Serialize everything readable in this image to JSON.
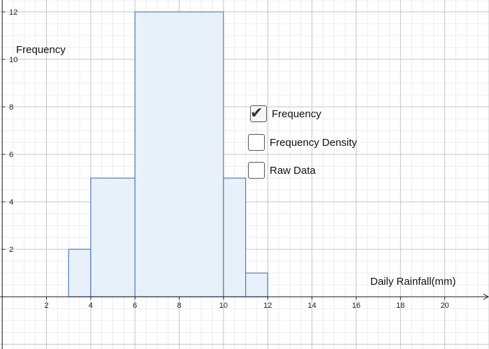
{
  "chart_data": {
    "type": "histogram",
    "xlabel": "Daily Rainfall(mm)",
    "ylabel": "Frequency",
    "xlim": [
      -0.1,
      22
    ],
    "ylim": [
      -2.2,
      12.5
    ],
    "xticks": [
      2,
      4,
      6,
      8,
      10,
      12,
      14,
      16,
      18,
      20
    ],
    "yticks": [
      2,
      4,
      6,
      8,
      10,
      12
    ],
    "bins": [
      {
        "x0": 3,
        "x1": 4,
        "value": 2
      },
      {
        "x0": 4,
        "x1": 6,
        "value": 5
      },
      {
        "x0": 6,
        "x1": 10,
        "value": 12
      },
      {
        "x0": 10,
        "x1": 11,
        "value": 5
      },
      {
        "x0": 11,
        "x1": 12,
        "value": 1
      }
    ],
    "grid": true,
    "bar_fill": "#e8f0fa",
    "bar_stroke": "#4a7fc1"
  },
  "controls": {
    "checkboxes": [
      {
        "label": "Frequency",
        "checked": true
      },
      {
        "label": "Frequency Density",
        "checked": false
      },
      {
        "label": "Raw Data",
        "checked": false
      }
    ]
  }
}
